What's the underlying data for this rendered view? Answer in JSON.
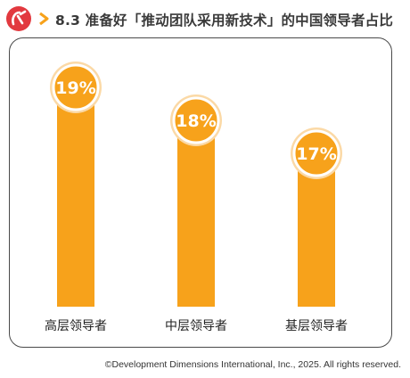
{
  "header": {
    "title": "8.3 准备好「推动团队采用新技术」的中国领导者占比",
    "logo_icon": "ddi-logo-icon",
    "chevron_icon": "chevron-right-icon"
  },
  "colors": {
    "bar": "#f7a21b",
    "logo": "#e2393f",
    "chevron": "#f7a21b",
    "border": "#4a4a4a"
  },
  "chart_data": {
    "type": "bar",
    "title": "8.3 准备好「推动团队采用新技术」的中国领导者占比",
    "categories": [
      "高层领导者",
      "中层领导者",
      "基层领导者"
    ],
    "values": [
      19,
      18,
      17
    ],
    "value_labels": [
      "19%",
      "18%",
      "17%"
    ],
    "unit": "%",
    "xlabel": "",
    "ylabel": "",
    "grid": false,
    "legend": "none"
  },
  "footer": {
    "copyright": "©Development Dimensions International, Inc., 2025. All rights reserved."
  }
}
